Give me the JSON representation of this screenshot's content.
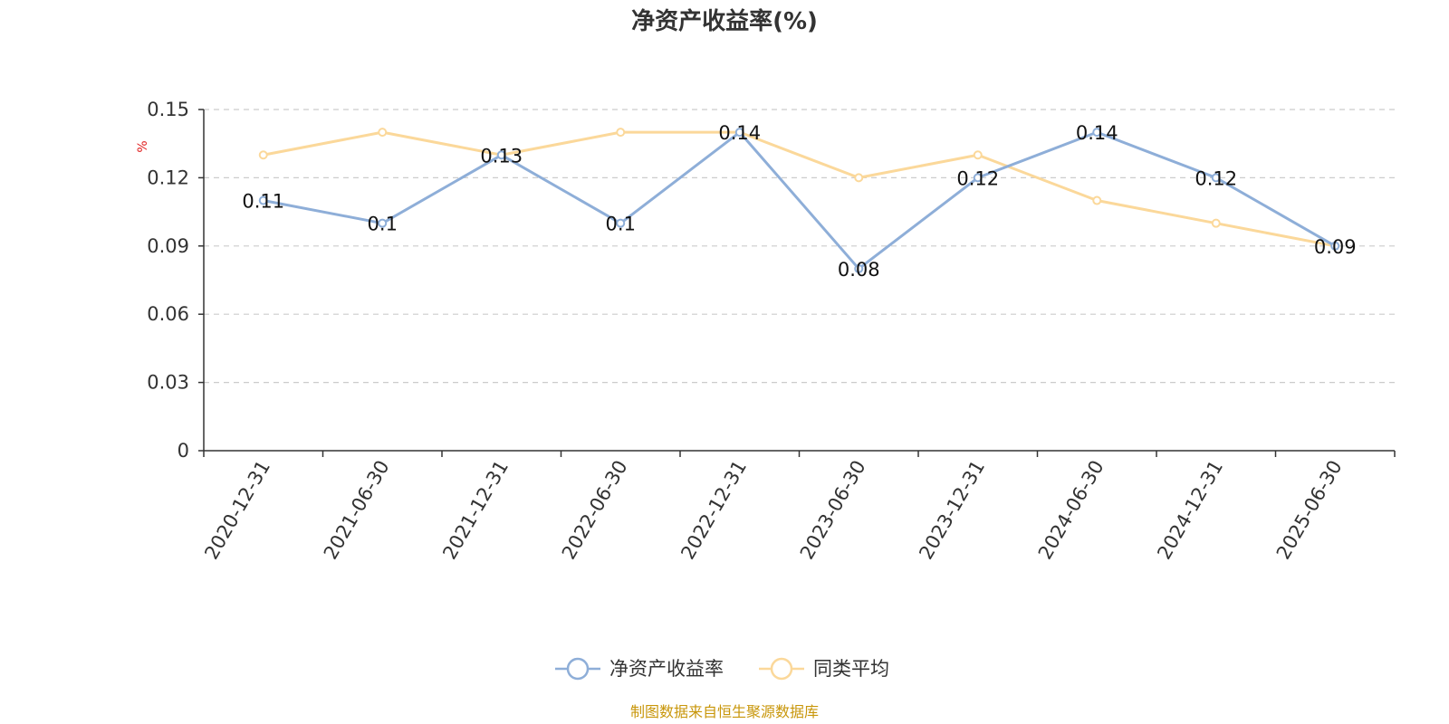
{
  "chart_data": {
    "type": "line",
    "title": "净资产收益率(%)",
    "ylabel": "%",
    "ylim": [
      0,
      0.15
    ],
    "yticks": [
      "0",
      "0.03",
      "0.06",
      "0.09",
      "0.12",
      "0.15"
    ],
    "grid": true,
    "legend_position": "bottom",
    "categories": [
      "2020-12-31",
      "2021-06-30",
      "2021-12-31",
      "2022-06-30",
      "2022-12-31",
      "2023-06-30",
      "2023-12-31",
      "2024-06-30",
      "2024-12-31",
      "2025-06-30"
    ],
    "series": [
      {
        "name": "净资产收益率",
        "color": "#8eaed8",
        "values": [
          0.11,
          0.1,
          0.13,
          0.1,
          0.14,
          0.08,
          0.12,
          0.14,
          0.12,
          0.09
        ],
        "labels": [
          "0.11",
          "0.1",
          "0.13",
          "0.1",
          "0.14",
          "0.08",
          "0.12",
          "0.14",
          "0.12",
          "0.09"
        ]
      },
      {
        "name": "同类平均",
        "color": "#fbd89a",
        "values": [
          0.13,
          0.14,
          0.13,
          0.14,
          0.14,
          0.12,
          0.13,
          0.11,
          0.1,
          0.09
        ]
      }
    ]
  },
  "colors": {
    "axis": "#333333",
    "grid": "#cccccc",
    "unit": "#e02020",
    "source": "#c8960a"
  },
  "source": "制图数据来自恒生聚源数据库"
}
